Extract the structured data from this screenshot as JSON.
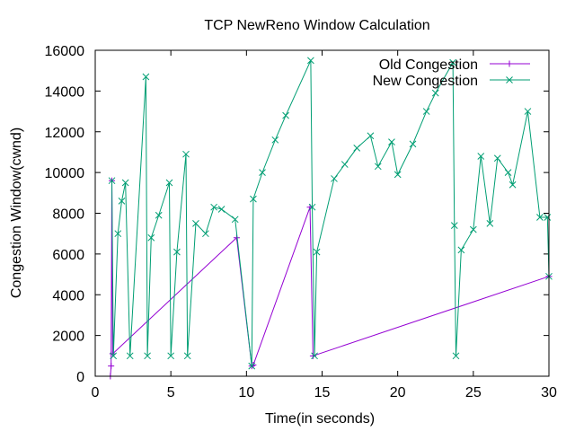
{
  "chart_data": {
    "type": "line",
    "title": "TCP NewReno Window Calculation",
    "xlabel": "Time(in seconds)",
    "ylabel": "Congestion Window(cwnd)",
    "xlim": [
      0,
      30
    ],
    "ylim": [
      0,
      16000
    ],
    "xticks": [
      "0",
      "5",
      "10",
      "15",
      "20",
      "25",
      "30"
    ],
    "yticks": [
      "0",
      "2000",
      "4000",
      "6000",
      "8000",
      "10000",
      "12000",
      "14000",
      "16000"
    ],
    "grid": false,
    "legend_position": "top-right",
    "series": [
      {
        "name": "Old Congestion",
        "color": "#9400d3",
        "marker": "+",
        "points": [
          [
            1.0,
            0
          ],
          [
            1.05,
            500
          ],
          [
            1.1,
            9600
          ],
          [
            1.15,
            1100
          ],
          [
            9.35,
            6800
          ],
          [
            10.35,
            500
          ],
          [
            10.45,
            550
          ],
          [
            14.2,
            8300
          ],
          [
            14.4,
            1000
          ],
          [
            30.0,
            4900
          ]
        ]
      },
      {
        "name": "New Congestion",
        "color": "#009e73",
        "marker": "x",
        "points": [
          [
            1.1,
            9600
          ],
          [
            1.2,
            1000
          ],
          [
            1.5,
            7000
          ],
          [
            1.75,
            8600
          ],
          [
            2.0,
            9500
          ],
          [
            2.3,
            1000
          ],
          [
            3.35,
            14700
          ],
          [
            3.45,
            1000
          ],
          [
            3.7,
            6800
          ],
          [
            4.2,
            7900
          ],
          [
            4.9,
            9500
          ],
          [
            5.0,
            1000
          ],
          [
            5.4,
            6100
          ],
          [
            6.0,
            10900
          ],
          [
            6.1,
            1000
          ],
          [
            6.65,
            7500
          ],
          [
            7.3,
            7000
          ],
          [
            7.85,
            8300
          ],
          [
            8.35,
            8200
          ],
          [
            9.25,
            7700
          ],
          [
            10.35,
            500
          ],
          [
            10.45,
            8700
          ],
          [
            11.05,
            10000
          ],
          [
            11.9,
            11600
          ],
          [
            12.6,
            12800
          ],
          [
            14.25,
            15500
          ],
          [
            14.35,
            8300
          ],
          [
            14.5,
            1000
          ],
          [
            14.65,
            6100
          ],
          [
            15.8,
            9700
          ],
          [
            16.5,
            10400
          ],
          [
            17.3,
            11200
          ],
          [
            18.2,
            11800
          ],
          [
            18.7,
            10300
          ],
          [
            19.6,
            11500
          ],
          [
            20.0,
            9900
          ],
          [
            21.0,
            11400
          ],
          [
            21.9,
            13000
          ],
          [
            22.5,
            13900
          ],
          [
            23.65,
            15400
          ],
          [
            23.75,
            7400
          ],
          [
            23.85,
            1000
          ],
          [
            24.2,
            6200
          ],
          [
            25.0,
            7200
          ],
          [
            25.5,
            10800
          ],
          [
            26.1,
            7500
          ],
          [
            26.6,
            10700
          ],
          [
            27.3,
            10000
          ],
          [
            27.6,
            9400
          ],
          [
            28.6,
            13000
          ],
          [
            29.4,
            7800
          ],
          [
            29.9,
            7800
          ],
          [
            30.0,
            4900
          ]
        ]
      }
    ]
  }
}
